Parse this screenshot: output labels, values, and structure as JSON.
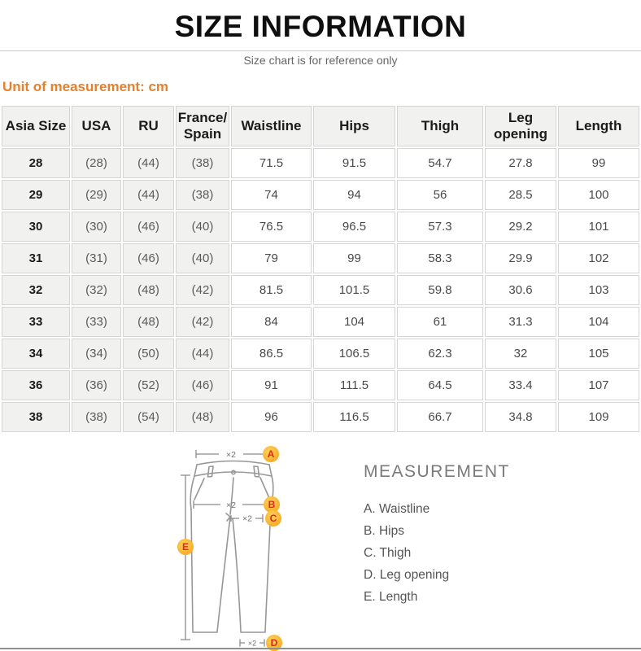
{
  "header": {
    "title": "SIZE INFORMATION",
    "subtitle": "Size chart is for reference only",
    "unit_note": "Unit of measurement: cm"
  },
  "size_table": {
    "columns": [
      "Asia Size",
      "USA",
      "RU",
      "France/\nSpain",
      "Waistline",
      "Hips",
      "Thigh",
      "Leg\nopening",
      "Length"
    ],
    "rows": [
      [
        "28",
        "(28)",
        "(44)",
        "(38)",
        "71.5",
        "91.5",
        "54.7",
        "27.8",
        "99"
      ],
      [
        "29",
        "(29)",
        "(44)",
        "(38)",
        "74",
        "94",
        "56",
        "28.5",
        "100"
      ],
      [
        "30",
        "(30)",
        "(46)",
        "(40)",
        "76.5",
        "96.5",
        "57.3",
        "29.2",
        "101"
      ],
      [
        "31",
        "(31)",
        "(46)",
        "(40)",
        "79",
        "99",
        "58.3",
        "29.9",
        "102"
      ],
      [
        "32",
        "(32)",
        "(48)",
        "(42)",
        "81.5",
        "101.5",
        "59.8",
        "30.6",
        "103"
      ],
      [
        "33",
        "(33)",
        "(48)",
        "(42)",
        "84",
        "104",
        "61",
        "31.3",
        "104"
      ],
      [
        "34",
        "(34)",
        "(50)",
        "(44)",
        "86.5",
        "106.5",
        "62.3",
        "32",
        "105"
      ],
      [
        "36",
        "(36)",
        "(52)",
        "(46)",
        "91",
        "111.5",
        "64.5",
        "33.4",
        "107"
      ],
      [
        "38",
        "(38)",
        "(54)",
        "(48)",
        "96",
        "116.5",
        "66.7",
        "34.8",
        "109"
      ]
    ]
  },
  "diagram": {
    "multiplier_label": "×2",
    "badges": [
      "A",
      "B",
      "C",
      "D",
      "E"
    ],
    "colors": {
      "accent_orange": "#e87f2a",
      "badge_fill_light": "#ffd45a",
      "badge_fill_dark": "#f6a41f",
      "badge_letter": "#e0261b",
      "outline_gray": "#979797"
    }
  },
  "measurement_legend": {
    "title": "MEASUREMENT",
    "items": [
      "A. Waistline",
      "B. Hips",
      "C. Thigh",
      "D. Leg opening",
      "E. Length"
    ]
  }
}
